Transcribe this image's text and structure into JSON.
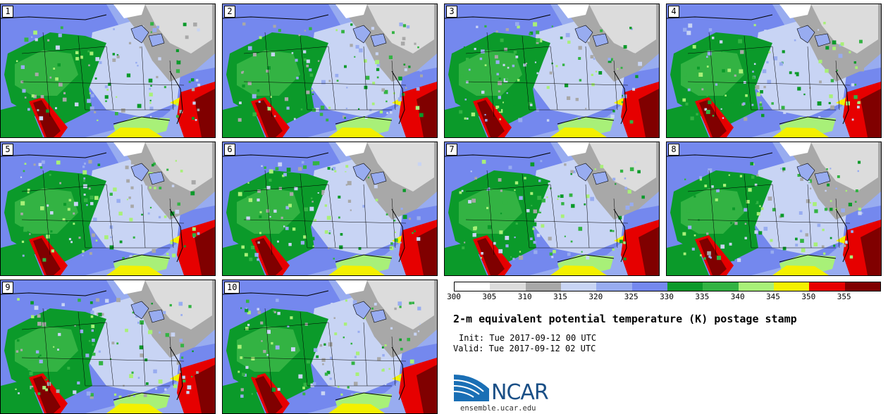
{
  "panels": [
    {
      "label": "1"
    },
    {
      "label": "2"
    },
    {
      "label": "3"
    },
    {
      "label": "4"
    },
    {
      "label": "5"
    },
    {
      "label": "6"
    },
    {
      "label": "7"
    },
    {
      "label": "8"
    },
    {
      "label": "9"
    },
    {
      "label": "10"
    }
  ],
  "colorbar": {
    "labels": [
      "300",
      "305",
      "310",
      "315",
      "320",
      "325",
      "330",
      "335",
      "340",
      "345",
      "350",
      "355"
    ],
    "colors": [
      "#ffffff",
      "#dcdcdc",
      "#a8a8a8",
      "#c8d4f4",
      "#98acf0",
      "#7488ee",
      "#0b9a2a",
      "#33b343",
      "#a8f078",
      "#f4f000",
      "#e60000",
      "#800000"
    ]
  },
  "title": "2-m equivalent potential temperature (K) postage stamp",
  "init": "Init: Tue 2017-09-12 00 UTC",
  "valid": "Valid: Tue 2017-09-12 02 UTC",
  "logo_text": "NCAR",
  "site": "ensemble.ucar.edu"
}
